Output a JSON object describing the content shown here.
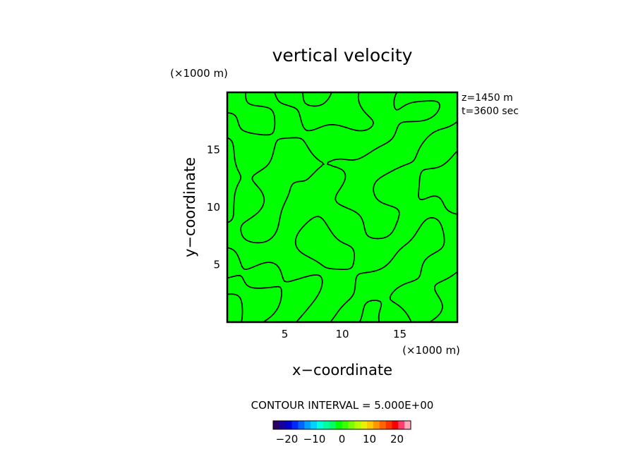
{
  "chart_data": {
    "type": "contour",
    "title": "vertical velocity",
    "xlabel": "x−coordinate",
    "ylabel": "y−coordinate",
    "x_unit": "(×1000 m)",
    "y_unit": "(×1000 m)",
    "xlim": [
      0,
      20
    ],
    "ylim": [
      0,
      20
    ],
    "x_ticks": [
      5,
      10,
      15
    ],
    "y_ticks": [
      5,
      10,
      15
    ],
    "x_tick_labels": [
      "5",
      "10",
      "15"
    ],
    "y_tick_labels": [
      "5",
      "10",
      "15"
    ],
    "info_lines": [
      "z=1450  m",
      "t=3600  sec"
    ],
    "contour_interval_text": "CONTOUR INTERVAL = 5.000E+00",
    "contour_interval": 5.0,
    "field_fill_color": "#00ff00",
    "contour_color": "#000000",
    "colorbar": {
      "range": [
        -25,
        25
      ],
      "ticks": [
        -20,
        -10,
        0,
        10,
        20
      ],
      "tick_labels": [
        "−20",
        "−10",
        "0",
        "10",
        "20"
      ],
      "colors": [
        "#2a0060",
        "#1400a0",
        "#0000d2",
        "#0028ff",
        "#0064ff",
        "#00a0ff",
        "#00d2ff",
        "#00ffdc",
        "#00ffa0",
        "#00ff64",
        "#00ff00",
        "#3cff00",
        "#78ff00",
        "#b4ff00",
        "#e6f000",
        "#ffc800",
        "#ff9600",
        "#ff6400",
        "#ff3200",
        "#ff0000",
        "#ff3c6e",
        "#ffaab4"
      ]
    }
  }
}
